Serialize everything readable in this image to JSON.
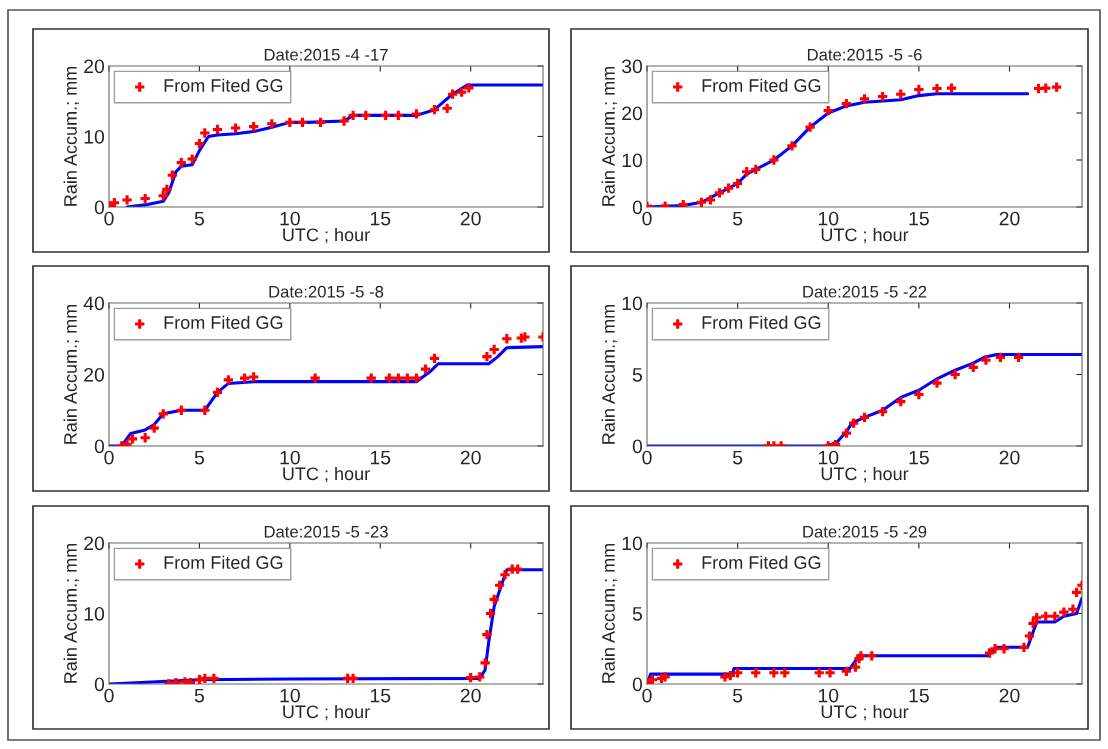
{
  "chart_data": [
    {
      "type": "line",
      "title": "Date:2015 -4 -17",
      "xlabel": "UTC ; hour",
      "ylabel": "Rain Accum.; mm",
      "xlim": [
        0,
        24
      ],
      "xticks": [
        0,
        5,
        10,
        15,
        20
      ],
      "ylim": [
        0,
        20
      ],
      "yticks": [
        0,
        10,
        20
      ],
      "grid": false,
      "legend": "top left",
      "series": [
        {
          "type": "line",
          "color": "#0000ff",
          "line_style": "solid",
          "x": [
            1,
            2,
            3,
            3.3,
            3.7,
            4,
            4.6,
            5,
            5.5,
            6,
            7,
            8,
            9,
            10,
            11,
            13,
            13.5,
            17,
            18,
            19,
            19.8,
            24
          ],
          "values": [
            0,
            0.3,
            0.8,
            2,
            5,
            5.8,
            6,
            8,
            10,
            10.2,
            10.4,
            10.7,
            11.3,
            12,
            12,
            12.2,
            13,
            13,
            13.8,
            16,
            17.3,
            17.3
          ]
        },
        {
          "type": "scatter",
          "name": "From Fited GG",
          "color": "#ff0000",
          "marker": "cross",
          "x": [
            0,
            0.3,
            1,
            2,
            3,
            3.2,
            3.5,
            4,
            4.6,
            5,
            5.3,
            6,
            7,
            8,
            9,
            10,
            10.7,
            11.7,
            13,
            13.5,
            14.2,
            15.3,
            16,
            17,
            18,
            18.7,
            19,
            19.5,
            19.9
          ],
          "values": [
            0.2,
            0.6,
            1,
            1.2,
            1.6,
            2.5,
            4.5,
            6.3,
            6.8,
            9,
            10.5,
            11,
            11.2,
            11.4,
            11.8,
            12,
            12,
            12,
            12.2,
            13,
            13,
            13,
            13,
            13.2,
            13.8,
            14,
            16,
            16.3,
            16.9
          ]
        }
      ]
    },
    {
      "type": "line",
      "title": "Date:2015 -5 -6",
      "xlabel": "UTC ; hour",
      "ylabel": "Rain Accum.; mm",
      "xlim": [
        0,
        24
      ],
      "xticks": [
        0,
        5,
        10,
        15,
        20
      ],
      "ylim": [
        0,
        30
      ],
      "yticks": [
        0,
        10,
        20,
        30
      ],
      "grid": false,
      "legend": "top left",
      "series": [
        {
          "type": "line",
          "color": "#0000ff",
          "line_style": "solid",
          "x": [
            0,
            2,
            3,
            4,
            5,
            5.5,
            6,
            7,
            8,
            9,
            10,
            11,
            12,
            14,
            15,
            16,
            21
          ],
          "values": [
            0,
            0.3,
            1,
            3,
            5,
            7,
            8,
            10,
            13,
            17,
            20,
            21.5,
            22.3,
            22.8,
            23.7,
            24.1,
            24.1
          ]
        },
        {
          "type": "scatter",
          "name": "From Fited GG",
          "color": "#ff0000",
          "marker": "cross",
          "x": [
            0,
            1,
            2,
            3,
            3.5,
            4,
            4.5,
            5,
            5.5,
            6,
            7,
            8,
            9,
            10,
            11,
            12,
            13,
            14,
            15,
            16,
            16.8,
            21.6,
            22,
            22.6
          ],
          "values": [
            0.2,
            0.2,
            0.5,
            1,
            1.5,
            3,
            4,
            5,
            7.5,
            8,
            10,
            13,
            17,
            20.5,
            22,
            23,
            23.5,
            24,
            25,
            25.2,
            25.3,
            25.2,
            25.3,
            25.5
          ]
        }
      ]
    },
    {
      "type": "line",
      "title": "Date:2015 -5 -8",
      "xlabel": "UTC ; hour",
      "ylabel": "Rain Accum.; mm",
      "xlim": [
        0,
        24
      ],
      "xticks": [
        0,
        5,
        10,
        15,
        20
      ],
      "ylim": [
        0,
        40
      ],
      "yticks": [
        0,
        20,
        40
      ],
      "grid": false,
      "legend": "top left",
      "series": [
        {
          "type": "line",
          "color": "#0000ff",
          "line_style": "solid",
          "x": [
            0,
            0.7,
            1.2,
            2,
            2.5,
            3,
            4,
            5.3,
            6,
            6.6,
            8,
            17,
            17.8,
            18.2,
            21,
            21.5,
            22,
            24
          ],
          "values": [
            0,
            0,
            3.5,
            4.5,
            6,
            9,
            10,
            10,
            15,
            17.5,
            18,
            18,
            21,
            23,
            23,
            25,
            27.5,
            27.8
          ]
        },
        {
          "type": "scatter",
          "name": "From Fited GG",
          "color": "#ff0000",
          "marker": "cross",
          "x": [
            0.7,
            1,
            1.3,
            2,
            2.5,
            3,
            4,
            5.3,
            6,
            6.6,
            7.5,
            8,
            11.4,
            14.5,
            15.5,
            16,
            16.5,
            17,
            17.5,
            18,
            20.9,
            21.3,
            22,
            22.8,
            23,
            24
          ],
          "values": [
            0,
            0.5,
            2,
            2.3,
            5,
            9,
            10,
            10,
            15,
            18.5,
            19,
            19.3,
            19,
            19,
            19,
            19,
            19,
            19,
            21.5,
            24.5,
            25,
            27,
            30,
            30.2,
            30.5,
            30.5
          ]
        }
      ]
    },
    {
      "type": "line",
      "title": "Date:2015 -5 -22",
      "xlabel": "UTC ; hour",
      "ylabel": "Rain Accum.; mm",
      "xlim": [
        0,
        24
      ],
      "xticks": [
        0,
        5,
        10,
        15,
        20
      ],
      "ylim": [
        0,
        10
      ],
      "yticks": [
        0,
        5,
        10
      ],
      "grid": false,
      "legend": "top left",
      "series": [
        {
          "type": "line",
          "color": "#0000ff",
          "line_style": "solid",
          "x": [
            0,
            10,
            10.5,
            11,
            11.3,
            12,
            13,
            14,
            15,
            16,
            17,
            18,
            18.6,
            19.3,
            24
          ],
          "values": [
            0,
            0,
            0.3,
            1,
            1.6,
            2,
            2.5,
            3.4,
            3.9,
            4.7,
            5.3,
            5.8,
            6.2,
            6.4,
            6.4
          ]
        },
        {
          "type": "scatter",
          "name": "From Fited GG",
          "color": "#ff0000",
          "marker": "cross",
          "x": [
            6.7,
            7,
            7.4,
            10,
            10.4,
            11,
            11.4,
            12,
            13,
            14,
            15,
            16,
            17,
            18,
            18.7,
            19.5,
            20.5
          ],
          "values": [
            0,
            0,
            0,
            0,
            0.1,
            0.9,
            1.6,
            2,
            2.4,
            3.1,
            3.6,
            4.4,
            5,
            5.5,
            6,
            6.2,
            6.2
          ]
        }
      ]
    },
    {
      "type": "line",
      "title": "Date:2015 -5 -23",
      "xlabel": "UTC ; hour",
      "ylabel": "Rain Accum.; mm",
      "xlim": [
        0,
        24
      ],
      "xticks": [
        0,
        5,
        10,
        15,
        20
      ],
      "ylim": [
        0,
        20
      ],
      "yticks": [
        0,
        10,
        20
      ],
      "grid": false,
      "legend": "top left",
      "series": [
        {
          "type": "line",
          "color": "#0000ff",
          "line_style": "solid",
          "x": [
            0,
            4,
            5,
            10,
            20.5,
            20.8,
            21,
            21.3,
            21.7,
            22,
            24
          ],
          "values": [
            0,
            null,
            0.6,
            0.7,
            0.8,
            2,
            6,
            11,
            14,
            16.2,
            16.2
          ]
        },
        {
          "type": "scatter",
          "name": "From Fited GG",
          "color": "#ff0000",
          "marker": "cross",
          "x": [
            3.3,
            3.7,
            4.2,
            4.5,
            5,
            5.3,
            5.8,
            13.2,
            13.5,
            20,
            20.5,
            20.8,
            20.9,
            21.1,
            21.3,
            21.6,
            21.9,
            22.3,
            22.6
          ],
          "values": [
            0,
            0.2,
            0.3,
            0.2,
            0.6,
            0.8,
            0.8,
            0.8,
            0.8,
            0.9,
            1,
            3,
            7,
            10,
            12,
            14,
            15.5,
            16.3,
            16.3
          ]
        }
      ]
    },
    {
      "type": "line",
      "title": "Date:2015 -5 -29",
      "xlabel": "UTC ; hour",
      "ylabel": "Rain Accum.; mm",
      "xlim": [
        0,
        24
      ],
      "xticks": [
        0,
        5,
        10,
        15,
        20
      ],
      "ylim": [
        0,
        10
      ],
      "yticks": [
        0,
        5,
        10
      ],
      "grid": false,
      "legend": "top left",
      "series": [
        {
          "type": "line",
          "color": "#0000ff",
          "line_style": "solid",
          "x": [
            0,
            0.2,
            4.7,
            4.8,
            11.2,
            11.7,
            18.8,
            19.3,
            21,
            21.5,
            22.5,
            23,
            23.7,
            24
          ],
          "values": [
            0,
            0.7,
            0.7,
            1.1,
            1.1,
            2,
            2,
            2.6,
            2.6,
            4.4,
            4.4,
            4.8,
            5,
            6.1
          ]
        },
        {
          "type": "scatter",
          "name": "From Fited GG",
          "color": "#ff0000",
          "marker": "cross",
          "x": [
            0,
            0.3,
            0.8,
            1,
            4.3,
            4.6,
            5,
            6,
            7,
            7.6,
            9.5,
            10.1,
            11,
            11.5,
            11.7,
            11.8,
            12.4,
            18.9,
            19.2,
            19.7,
            20.8,
            21.1,
            21.3,
            21.5,
            22,
            22.5,
            23,
            23.5,
            23.7,
            24
          ],
          "values": [
            0.1,
            0.3,
            0.4,
            0.5,
            0.5,
            0.6,
            0.8,
            0.8,
            0.8,
            0.8,
            0.8,
            0.8,
            0.9,
            1.2,
            1.8,
            2,
            2,
            2.2,
            2.5,
            2.5,
            2.6,
            3.4,
            4.3,
            4.7,
            4.8,
            4.8,
            5.1,
            5.3,
            6.5,
            7
          ]
        }
      ]
    }
  ]
}
